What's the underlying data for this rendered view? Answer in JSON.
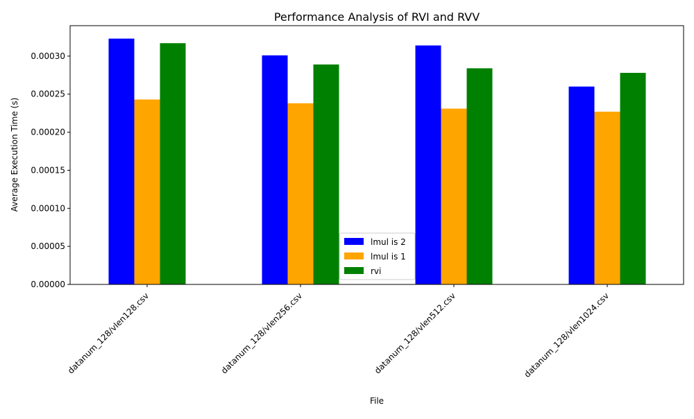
{
  "chart_data": {
    "type": "bar",
    "title": "Performance Analysis of RVI and RVV",
    "xlabel": "File",
    "ylabel": "Average Execution Time (s)",
    "categories": [
      "datanum_128/vlen128.csv",
      "datanum_128/vlen256.csv",
      "datanum_128/vlen512.csv",
      "datanum_128/vlen1024.csv"
    ],
    "series": [
      {
        "name": "lmul is 2",
        "color": "#0000ff",
        "values": [
          0.000323,
          0.000301,
          0.000314,
          0.00026
        ]
      },
      {
        "name": "lmul is 1",
        "color": "#ffa500",
        "values": [
          0.000243,
          0.000238,
          0.000231,
          0.000227
        ]
      },
      {
        "name": "rvi",
        "color": "#008000",
        "values": [
          0.000317,
          0.000289,
          0.000284,
          0.000278
        ]
      }
    ],
    "ylim": [
      0,
      0.00034
    ],
    "yticks": [
      0,
      5e-05,
      0.0001,
      0.00015,
      0.0002,
      0.00025,
      0.0003
    ],
    "ytick_labels": [
      "0.00000",
      "0.00005",
      "0.00010",
      "0.00015",
      "0.00020",
      "0.00025",
      "0.00030"
    ],
    "grid": false,
    "legend_position": "bottom-center",
    "xtick_rotation_deg": 45
  }
}
